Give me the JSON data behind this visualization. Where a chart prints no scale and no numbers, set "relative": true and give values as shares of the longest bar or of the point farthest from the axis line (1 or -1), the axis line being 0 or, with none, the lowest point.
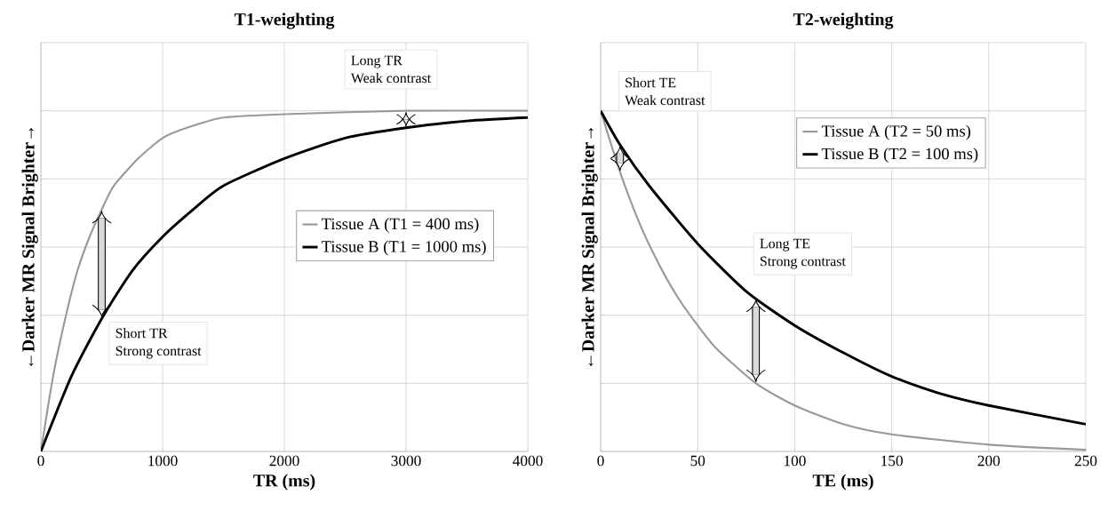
{
  "chart_data": [
    {
      "type": "line",
      "title": "T1-weighting",
      "xlabel": "TR (ms)",
      "ylabel": "←Darker MR Signal Brighter→",
      "relative": true,
      "grid": true,
      "legend": "right",
      "marker": "none",
      "line_style": "solid",
      "xlim": [
        0,
        4000
      ],
      "xticks": [
        0,
        1000,
        2000,
        3000,
        4000
      ],
      "series": [
        {
          "name": "Tissue A (T1 = 400 ms)",
          "color": "#999999",
          "x": [
            0,
            100,
            200,
            300,
            400,
            500,
            600,
            800,
            1000,
            1200,
            1500,
            2000,
            3000,
            4000
          ],
          "values": [
            0,
            0.22,
            0.39,
            0.53,
            0.63,
            0.71,
            0.78,
            0.86,
            0.92,
            0.95,
            0.98,
            0.99,
            1.0,
            1.0
          ]
        },
        {
          "name": "Tissue B (T1 = 1000 ms)",
          "color": "#000000",
          "x": [
            0,
            250,
            500,
            750,
            1000,
            1250,
            1500,
            2000,
            2500,
            3000,
            3500,
            4000
          ],
          "values": [
            0,
            0.22,
            0.39,
            0.53,
            0.63,
            0.71,
            0.78,
            0.86,
            0.92,
            0.95,
            0.97,
            0.98
          ]
        }
      ],
      "annotations": [
        "Short TR",
        "Strong contrast",
        "Long TR",
        "Weak contrast"
      ]
    },
    {
      "type": "line",
      "title": "T2-weighting",
      "xlabel": "TE (ms)",
      "ylabel": "←Darker MR Signal Brighter→",
      "relative": true,
      "grid": true,
      "legend": "top right",
      "marker": "none",
      "line_style": "solid",
      "xlim": [
        0,
        250
      ],
      "xticks": [
        0,
        50,
        100,
        150,
        200,
        250
      ],
      "series": [
        {
          "name": "Tissue A (T2 = 50 ms)",
          "color": "#999999",
          "x": [
            0,
            10,
            20,
            30,
            40,
            50,
            60,
            80,
            100,
            125,
            150,
            200,
            250
          ],
          "values": [
            1.0,
            0.82,
            0.67,
            0.55,
            0.45,
            0.37,
            0.3,
            0.2,
            0.135,
            0.08,
            0.05,
            0.02,
            0.005
          ]
        },
        {
          "name": "Tissue B (T2 = 100 ms)",
          "color": "#000000",
          "x": [
            0,
            10,
            25,
            50,
            75,
            100,
            125,
            150,
            175,
            200,
            250
          ],
          "values": [
            1.0,
            0.9,
            0.78,
            0.61,
            0.47,
            0.37,
            0.29,
            0.22,
            0.17,
            0.135,
            0.08
          ]
        }
      ],
      "annotations": [
        "Short TE",
        "Weak contrast",
        "Long TE",
        "Strong contrast"
      ]
    }
  ]
}
